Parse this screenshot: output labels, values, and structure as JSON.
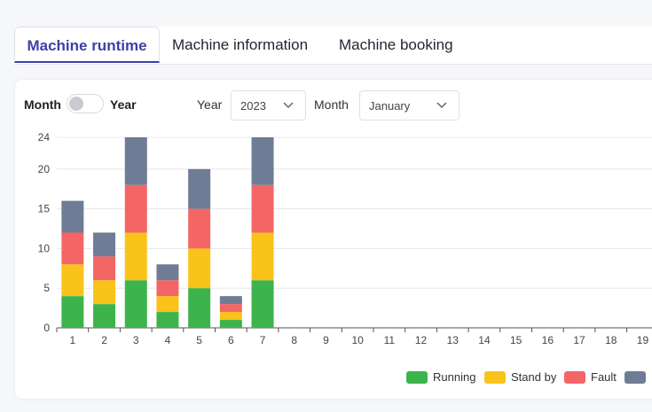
{
  "tabs": [
    {
      "label": "Machine runtime"
    },
    {
      "label": "Machine information"
    },
    {
      "label": "Machine booking"
    }
  ],
  "controls": {
    "toggle_left": "Month",
    "toggle_right": "Year",
    "year_label": "Year",
    "year_value": "2023",
    "month_label": "Month",
    "month_value": "January"
  },
  "colors": {
    "running": "#3cb44b",
    "standby": "#f9c31a",
    "fault": "#f46666",
    "other": "#6f7c96",
    "accent": "#3d3fa8"
  },
  "chart_data": {
    "type": "bar",
    "stacked": true,
    "categories": [
      "1",
      "2",
      "3",
      "4",
      "5",
      "6",
      "7",
      "8",
      "9",
      "10",
      "11",
      "12",
      "13",
      "14",
      "15",
      "16",
      "17",
      "18",
      "19"
    ],
    "series": [
      {
        "name": "Running",
        "values": [
          4,
          3,
          6,
          2,
          5,
          1,
          6,
          0,
          0,
          0,
          0,
          0,
          0,
          0,
          0,
          0,
          0,
          0,
          0
        ]
      },
      {
        "name": "Stand by",
        "values": [
          4,
          3,
          6,
          2,
          5,
          1,
          6,
          0,
          0,
          0,
          0,
          0,
          0,
          0,
          0,
          0,
          0,
          0,
          0
        ]
      },
      {
        "name": "Fault",
        "values": [
          4,
          3,
          6,
          2,
          5,
          1,
          6,
          0,
          0,
          0,
          0,
          0,
          0,
          0,
          0,
          0,
          0,
          0,
          0
        ]
      },
      {
        "name": "",
        "values": [
          4,
          3,
          6,
          2,
          5,
          1,
          6,
          0,
          0,
          0,
          0,
          0,
          0,
          0,
          0,
          0,
          0,
          0,
          0
        ]
      }
    ],
    "yticks": [
      0,
      5,
      10,
      15,
      20,
      24
    ],
    "ylim": [
      0,
      24
    ],
    "grid": true,
    "legend": "bottom-right"
  }
}
